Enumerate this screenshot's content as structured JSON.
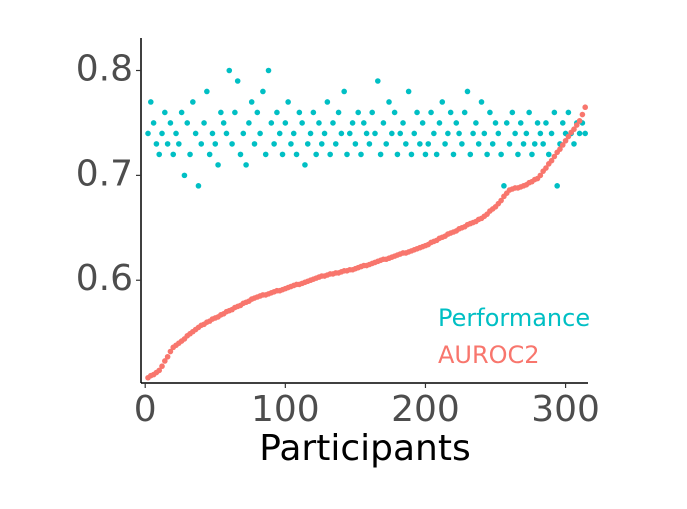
{
  "chart_data": {
    "type": "scatter",
    "xlabel": "Participants",
    "x": [
      2,
      4,
      6,
      8,
      10,
      12,
      14,
      16,
      18,
      20,
      22,
      24,
      26,
      28,
      30,
      32,
      34,
      36,
      38,
      40,
      42,
      44,
      46,
      48,
      50,
      52,
      54,
      56,
      58,
      60,
      62,
      64,
      66,
      68,
      70,
      72,
      74,
      76,
      78,
      80,
      82,
      84,
      86,
      88,
      90,
      92,
      94,
      96,
      98,
      100,
      102,
      104,
      106,
      108,
      110,
      112,
      114,
      116,
      118,
      120,
      122,
      124,
      126,
      128,
      130,
      132,
      134,
      136,
      138,
      140,
      142,
      144,
      146,
      148,
      150,
      152,
      154,
      156,
      158,
      160,
      162,
      164,
      166,
      168,
      170,
      172,
      174,
      176,
      178,
      180,
      182,
      184,
      186,
      188,
      190,
      192,
      194,
      196,
      198,
      200,
      202,
      204,
      206,
      208,
      210,
      212,
      214,
      216,
      218,
      220,
      222,
      224,
      226,
      228,
      230,
      232,
      234,
      236,
      238,
      240,
      242,
      244,
      246,
      248,
      250,
      252,
      254,
      256,
      258,
      260,
      262,
      264,
      266,
      268,
      270,
      272,
      274,
      276,
      278,
      280,
      282,
      284,
      286,
      288,
      290,
      292,
      294,
      296,
      298,
      300,
      302,
      304,
      306,
      308,
      310,
      312,
      314
    ],
    "series": [
      {
        "name": "Performance",
        "color": "#00BFC4",
        "values": [
          0.74,
          0.77,
          0.75,
          0.73,
          0.72,
          0.74,
          0.76,
          0.73,
          0.75,
          0.72,
          0.74,
          0.73,
          0.76,
          0.7,
          0.75,
          0.72,
          0.77,
          0.74,
          0.69,
          0.73,
          0.75,
          0.78,
          0.72,
          0.74,
          0.73,
          0.71,
          0.76,
          0.75,
          0.74,
          0.8,
          0.73,
          0.76,
          0.79,
          0.72,
          0.74,
          0.71,
          0.75,
          0.77,
          0.73,
          0.76,
          0.74,
          0.78,
          0.72,
          0.8,
          0.75,
          0.73,
          0.76,
          0.74,
          0.72,
          0.75,
          0.77,
          0.73,
          0.74,
          0.72,
          0.76,
          0.75,
          0.71,
          0.73,
          0.74,
          0.76,
          0.72,
          0.75,
          0.73,
          0.74,
          0.77,
          0.72,
          0.75,
          0.73,
          0.76,
          0.74,
          0.78,
          0.72,
          0.74,
          0.75,
          0.73,
          0.76,
          0.72,
          0.75,
          0.74,
          0.73,
          0.76,
          0.74,
          0.79,
          0.72,
          0.75,
          0.73,
          0.77,
          0.74,
          0.76,
          0.72,
          0.74,
          0.75,
          0.73,
          0.78,
          0.72,
          0.74,
          0.76,
          0.73,
          0.75,
          0.72,
          0.73,
          0.76,
          0.74,
          0.72,
          0.75,
          0.77,
          0.73,
          0.74,
          0.76,
          0.72,
          0.75,
          0.74,
          0.73,
          0.76,
          0.78,
          0.72,
          0.74,
          0.75,
          0.73,
          0.77,
          0.74,
          0.72,
          0.76,
          0.73,
          0.75,
          0.74,
          0.72,
          0.69,
          0.75,
          0.73,
          0.76,
          0.74,
          0.72,
          0.75,
          0.73,
          0.74,
          0.76,
          0.72,
          0.73,
          0.75,
          0.74,
          0.73,
          0.75,
          0.72,
          0.74,
          0.76,
          0.69,
          0.73,
          0.75,
          0.74,
          0.76,
          0.74,
          0.73,
          0.75,
          0.74,
          0.75,
          0.74
        ]
      },
      {
        "name": "AUROC2",
        "color": "#F8766D",
        "values": [
          0.507,
          0.509,
          0.51,
          0.512,
          0.514,
          0.518,
          0.523,
          0.527,
          0.532,
          0.536,
          0.538,
          0.54,
          0.542,
          0.544,
          0.547,
          0.549,
          0.551,
          0.553,
          0.555,
          0.557,
          0.558,
          0.56,
          0.561,
          0.563,
          0.564,
          0.565,
          0.567,
          0.568,
          0.57,
          0.571,
          0.572,
          0.574,
          0.575,
          0.576,
          0.578,
          0.579,
          0.58,
          0.582,
          0.583,
          0.584,
          0.585,
          0.586,
          0.586,
          0.587,
          0.588,
          0.589,
          0.59,
          0.59,
          0.591,
          0.592,
          0.593,
          0.594,
          0.595,
          0.596,
          0.596,
          0.597,
          0.598,
          0.599,
          0.6,
          0.601,
          0.602,
          0.603,
          0.604,
          0.604,
          0.605,
          0.606,
          0.606,
          0.607,
          0.607,
          0.608,
          0.609,
          0.609,
          0.61,
          0.61,
          0.611,
          0.612,
          0.613,
          0.614,
          0.614,
          0.615,
          0.616,
          0.617,
          0.618,
          0.619,
          0.62,
          0.62,
          0.621,
          0.622,
          0.623,
          0.624,
          0.625,
          0.626,
          0.626,
          0.627,
          0.628,
          0.629,
          0.63,
          0.631,
          0.632,
          0.633,
          0.634,
          0.636,
          0.637,
          0.638,
          0.64,
          0.641,
          0.642,
          0.644,
          0.645,
          0.646,
          0.647,
          0.649,
          0.65,
          0.651,
          0.653,
          0.654,
          0.655,
          0.656,
          0.658,
          0.659,
          0.661,
          0.663,
          0.666,
          0.668,
          0.67,
          0.673,
          0.676,
          0.68,
          0.683,
          0.686,
          0.687,
          0.688,
          0.688,
          0.689,
          0.69,
          0.691,
          0.693,
          0.694,
          0.696,
          0.697,
          0.7,
          0.704,
          0.707,
          0.711,
          0.714,
          0.718,
          0.722,
          0.725,
          0.729,
          0.733,
          0.737,
          0.741,
          0.744,
          0.748,
          0.752,
          0.758,
          0.765
        ]
      }
    ],
    "xlim": [
      -3,
      316
    ],
    "xticks": [
      0,
      100,
      200,
      300
    ],
    "ylim": [
      0.502,
      0.831
    ],
    "yticks": [
      0.6,
      0.7,
      0.8
    ],
    "grid": false,
    "legend": "bottom-right"
  }
}
